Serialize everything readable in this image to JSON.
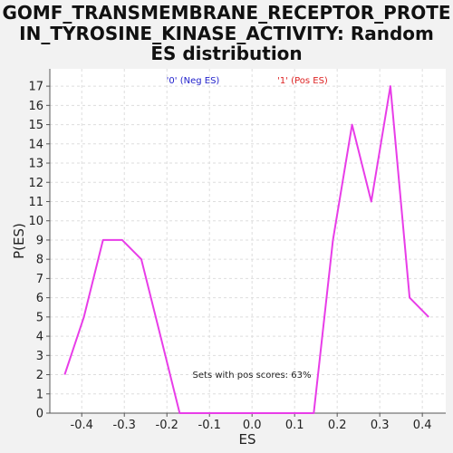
{
  "title_line1": "GOMF_TRANSMEMBRANE_RECEPTOR_PROTE",
  "title_line2": "IN_TYROSINE_KINASE_ACTIVITY: Random",
  "title_line3": "ES distribution",
  "colors": {
    "line": "#e83de8",
    "neg_legend": "#2222cc",
    "pos_legend": "#dd2222",
    "grid": "#dddddd",
    "plot_bg": "#ffffff"
  },
  "chart_data": {
    "type": "line",
    "title": "GOMF_TRANSMEMBRANE_RECEPTOR_PROTEIN_TYROSINE_KINASE_ACTIVITY: Random ES distribution",
    "xlabel": "ES",
    "ylabel": "P(ES)",
    "xlim": [
      -0.475,
      0.455
    ],
    "ylim": [
      0,
      17.9
    ],
    "xticks": [
      -0.4,
      -0.3,
      -0.2,
      -0.1,
      0.0,
      0.1,
      0.2,
      0.3,
      0.4
    ],
    "xtick_labels": [
      "-0.4",
      "-0.3",
      "-0.2",
      "-0.1",
      "0.0",
      "0.1",
      "0.2",
      "0.3",
      "0.4"
    ],
    "yticks": [
      0,
      1,
      2,
      3,
      4,
      5,
      6,
      7,
      8,
      9,
      10,
      11,
      12,
      13,
      14,
      15,
      16,
      17
    ],
    "grid": true,
    "legend": [
      {
        "label": "'0' (Neg ES)",
        "color": "#2222cc"
      },
      {
        "label": "'1' (Pos ES)",
        "color": "#dd2222"
      }
    ],
    "annotation": "Sets with pos scores: 63%",
    "series": [
      {
        "x": [
          -0.44,
          -0.395,
          -0.35,
          -0.305,
          -0.26,
          -0.215,
          -0.17,
          -0.125,
          -0.08,
          -0.035,
          0.01,
          0.055,
          0.1,
          0.145,
          0.19,
          0.235,
          0.28,
          0.325,
          0.37,
          0.415
        ],
        "y": [
          2,
          5,
          9,
          9,
          8,
          4,
          0,
          0,
          0,
          0,
          0,
          0,
          0,
          0,
          9,
          15,
          11,
          17,
          6,
          5
        ]
      }
    ]
  }
}
